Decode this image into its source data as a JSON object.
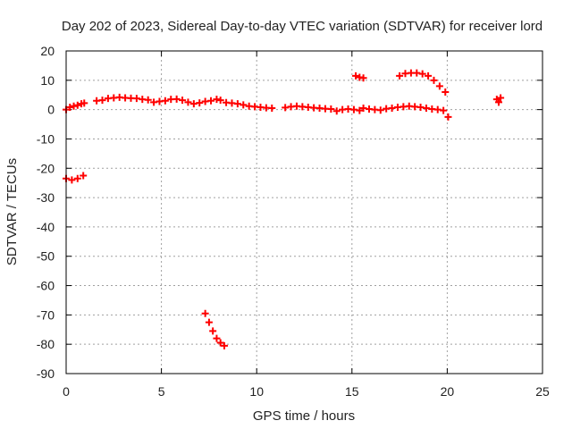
{
  "chart_data": {
    "type": "scatter",
    "title": "Day 202 of 2023, Sidereal Day-to-day VTEC variation (SDTVAR) for receiver lord",
    "xlabel": "GPS time / hours",
    "ylabel": "SDTVAR / TECUs",
    "xlim": [
      0,
      25
    ],
    "ylim": [
      -90,
      20
    ],
    "xticks": [
      0,
      5,
      10,
      15,
      20,
      25
    ],
    "yticks": [
      20,
      10,
      0,
      -10,
      -20,
      -30,
      -40,
      -50,
      -60,
      -70,
      -80,
      -90
    ],
    "grid": true,
    "color": "#ff0000",
    "marker": "plus",
    "series": [
      {
        "name": "lord",
        "x": [
          0.0,
          0.2,
          0.4,
          0.6,
          0.8,
          0.95,
          1.6,
          1.9,
          2.2,
          2.5,
          2.8,
          3.1,
          3.4,
          3.7,
          4.0,
          4.3,
          4.6,
          4.9,
          5.2,
          5.5,
          5.8,
          6.1,
          6.4,
          6.7,
          7.0,
          7.3,
          7.6,
          7.9,
          8.1,
          8.4,
          8.7,
          9.0,
          9.3,
          9.6,
          9.9,
          10.2,
          10.5,
          10.8,
          11.5,
          11.8,
          12.1,
          12.4,
          12.7,
          13.0,
          13.3,
          13.6,
          13.9,
          14.2,
          14.5,
          14.8,
          15.1,
          15.4,
          15.6,
          15.9,
          16.2,
          16.5,
          16.8,
          17.1,
          17.4,
          17.7,
          18.0,
          18.3,
          18.6,
          18.9,
          19.2,
          19.5,
          19.8,
          20.05,
          0.0,
          0.3,
          0.6,
          0.9,
          7.3,
          7.5,
          7.7,
          7.9,
          8.1,
          8.3,
          15.2,
          15.4,
          15.6,
          17.5,
          17.8,
          18.1,
          18.4,
          18.7,
          19.0,
          19.3,
          19.6,
          19.9,
          22.6,
          22.7,
          22.8
        ],
        "y": [
          0.0,
          0.8,
          1.2,
          1.5,
          2.0,
          2.2,
          3.0,
          3.2,
          3.8,
          4.0,
          4.2,
          4.0,
          3.9,
          3.8,
          3.5,
          3.3,
          2.5,
          2.8,
          3.0,
          3.5,
          3.6,
          3.2,
          2.5,
          2.0,
          2.3,
          2.8,
          3.0,
          3.5,
          3.2,
          2.4,
          2.2,
          2.0,
          1.6,
          1.2,
          1.0,
          0.8,
          0.6,
          0.5,
          0.7,
          1.0,
          1.2,
          1.0,
          0.8,
          0.6,
          0.5,
          0.3,
          0.2,
          -0.5,
          0.0,
          0.2,
          0.0,
          -0.3,
          0.5,
          0.2,
          0.0,
          -0.2,
          0.3,
          0.5,
          0.8,
          1.0,
          1.2,
          1.0,
          0.8,
          0.5,
          0.2,
          0.0,
          -0.3,
          -2.5,
          -23.5,
          -24.0,
          -23.5,
          -22.5,
          -69.5,
          -72.5,
          -75.5,
          -78.0,
          -79.5,
          -80.5,
          11.5,
          11.0,
          10.8,
          11.5,
          12.3,
          12.5,
          12.5,
          12.2,
          11.5,
          10.0,
          8.0,
          6.0,
          3.5,
          2.5,
          4.0
        ]
      }
    ]
  }
}
